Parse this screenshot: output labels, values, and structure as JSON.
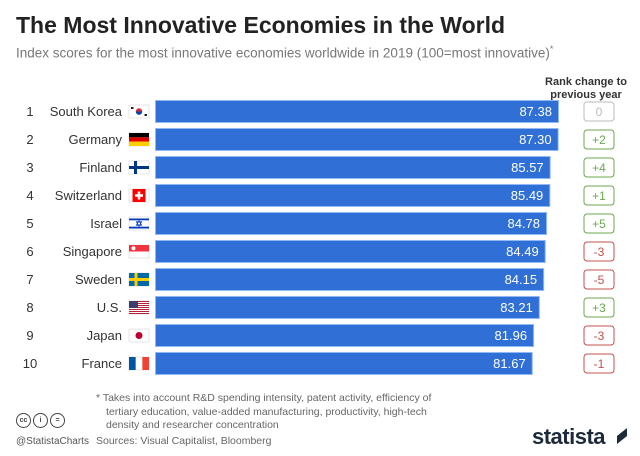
{
  "header": {
    "title": "The Most Innovative Economies in the World",
    "subtitle": "Index scores for the most innovative economies worldwide in 2019 (100=most innovative)",
    "subtitle_mark": "*"
  },
  "rank_header": [
    "Rank change to",
    "previous year"
  ],
  "chart_data": {
    "type": "bar",
    "orientation": "horizontal",
    "title": "The Most Innovative Economies in the World",
    "categories": [
      "South Korea",
      "Germany",
      "Finland",
      "Switzerland",
      "Israel",
      "Singapore",
      "Sweden",
      "U.S.",
      "Japan",
      "France"
    ],
    "ranks": [
      "1",
      "2",
      "3",
      "4",
      "5",
      "6",
      "7",
      "8",
      "9",
      "10"
    ],
    "values": [
      87.38,
      87.3,
      85.57,
      85.49,
      84.78,
      84.49,
      84.15,
      83.21,
      81.96,
      81.67
    ],
    "value_labels": [
      "87.38",
      "87.30",
      "85.57",
      "85.49",
      "84.78",
      "84.49",
      "84.15",
      "83.21",
      "81.96",
      "81.67"
    ],
    "rank_change": [
      "0",
      "+2",
      "+4",
      "+1",
      "+5",
      "-3",
      "-5",
      "+3",
      "-3",
      "-1"
    ],
    "rank_change_colors": {
      "positive": "#6aa84f",
      "negative": "#c0504d",
      "neutral": "#bbbbbb"
    },
    "bar_color": "#2f6fd6",
    "bar_edge_color": "#8fb8f5",
    "xlim": [
      0,
      87.38
    ]
  },
  "footer": {
    "footnote_line1": "* Takes into account R&D spending intensity, patent activity, efficiency of",
    "footnote_line2": "tertiary education, value-added manufacturing, productivity, high-tech",
    "footnote_line3": "density and researcher concentration",
    "sources": "Sources: Visual Capitalist, Bloomberg",
    "handle": "@StatistaCharts",
    "logo": "statista",
    "cc_icons": [
      "cc",
      "i",
      "="
    ]
  }
}
